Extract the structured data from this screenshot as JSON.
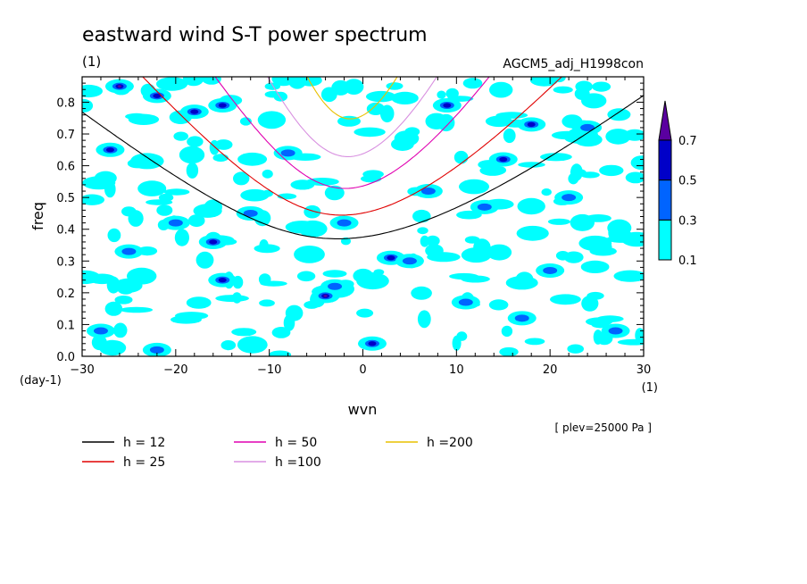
{
  "chart_data": {
    "type": "heatmap",
    "title": "eastward wind S-T power spectrum",
    "subtitle": "(1)",
    "run_label": "AGCM5_adj_H1998con",
    "xlabel": "wvn",
    "xunit": "(1)",
    "ylabel": "freq",
    "yunit": "(day-1)",
    "xlim": [
      -30,
      30
    ],
    "ylim": [
      0,
      0.88
    ],
    "xticks": [
      -30,
      -20,
      -10,
      0,
      10,
      20,
      30
    ],
    "yticks": [
      0.0,
      0.1,
      0.2,
      0.3,
      0.4,
      0.5,
      0.6,
      0.7,
      0.8
    ],
    "annotation": "[ plev=25000 Pa ]",
    "colorbar": {
      "levels": [
        "0.1",
        "0.3",
        "0.5",
        "0.7"
      ],
      "colors": [
        "#00ffff",
        "#0064ff",
        "#0000c8",
        "#5a00a0"
      ]
    },
    "dispersion_curves": [
      {
        "label": "h = 12",
        "h": 12,
        "color": "#000000"
      },
      {
        "label": "h = 25",
        "h": 25,
        "color": "#e00000"
      },
      {
        "label": "h = 50",
        "h": 50,
        "color": "#e000b0"
      },
      {
        "label": "h =100",
        "h": 100,
        "color": "#d890e0"
      },
      {
        "label": "h =200",
        "h": 200,
        "color": "#e8c000"
      }
    ],
    "blobs": [
      {
        "x": -26,
        "y": 0.85,
        "v": 0.6
      },
      {
        "x": -22,
        "y": 0.82,
        "v": 0.5
      },
      {
        "x": -18,
        "y": 0.77,
        "v": 0.5
      },
      {
        "x": -15,
        "y": 0.79,
        "v": 0.5
      },
      {
        "x": -27,
        "y": 0.65,
        "v": 0.5
      },
      {
        "x": -20,
        "y": 0.42,
        "v": 0.3
      },
      {
        "x": -16,
        "y": 0.36,
        "v": 0.5
      },
      {
        "x": -15,
        "y": 0.24,
        "v": 0.5
      },
      {
        "x": -12,
        "y": 0.45,
        "v": 0.3
      },
      {
        "x": -28,
        "y": 0.08,
        "v": 0.3
      },
      {
        "x": -22,
        "y": 0.02,
        "v": 0.3
      },
      {
        "x": -4,
        "y": 0.19,
        "v": 0.6
      },
      {
        "x": -3,
        "y": 0.22,
        "v": 0.4
      },
      {
        "x": 3,
        "y": 0.31,
        "v": 0.5
      },
      {
        "x": 5,
        "y": 0.3,
        "v": 0.4
      },
      {
        "x": 1,
        "y": 0.04,
        "v": 0.5
      },
      {
        "x": 9,
        "y": 0.79,
        "v": 0.5
      },
      {
        "x": 18,
        "y": 0.73,
        "v": 0.5
      },
      {
        "x": 15,
        "y": 0.62,
        "v": 0.5
      },
      {
        "x": 24,
        "y": 0.72,
        "v": 0.4
      },
      {
        "x": 13,
        "y": 0.47,
        "v": 0.3
      },
      {
        "x": 7,
        "y": 0.52,
        "v": 0.3
      },
      {
        "x": 20,
        "y": 0.27,
        "v": 0.3
      },
      {
        "x": 27,
        "y": 0.08,
        "v": 0.3
      },
      {
        "x": -8,
        "y": 0.64,
        "v": 0.3
      },
      {
        "x": -2,
        "y": 0.42,
        "v": 0.3
      },
      {
        "x": 17,
        "y": 0.12,
        "v": 0.3
      },
      {
        "x": 11,
        "y": 0.17,
        "v": 0.3
      },
      {
        "x": -25,
        "y": 0.33,
        "v": 0.3
      },
      {
        "x": 22,
        "y": 0.5,
        "v": 0.3
      }
    ]
  }
}
